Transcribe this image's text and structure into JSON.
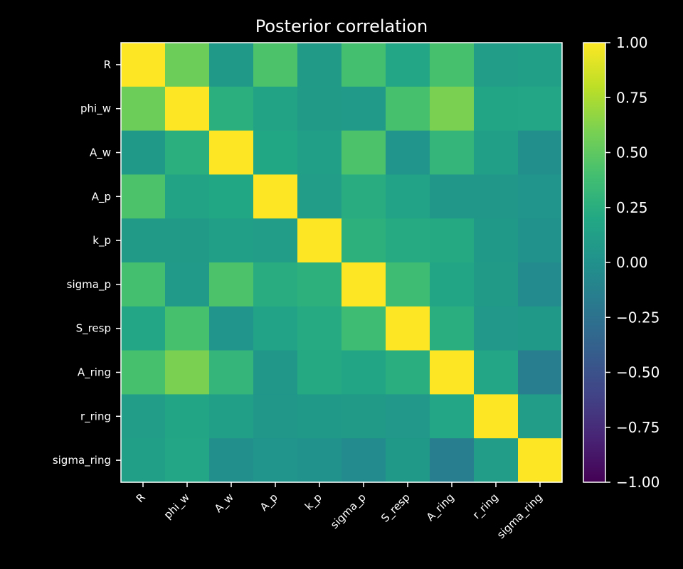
{
  "chart_data": {
    "type": "heatmap",
    "title": "Posterior correlation",
    "categories": [
      "R",
      "phi_w",
      "A_w",
      "A_p",
      "k_p",
      "sigma_p",
      "S_resp",
      "A_ring",
      "r_ring",
      "sigma_ring"
    ],
    "matrix": [
      [
        1.0,
        0.55,
        0.07,
        0.43,
        0.09,
        0.4,
        0.18,
        0.41,
        0.11,
        0.13
      ],
      [
        0.55,
        1.0,
        0.26,
        0.16,
        0.09,
        0.08,
        0.41,
        0.6,
        0.17,
        0.18
      ],
      [
        0.07,
        0.26,
        1.0,
        0.19,
        0.12,
        0.43,
        0.03,
        0.31,
        0.13,
        -0.02
      ],
      [
        0.43,
        0.16,
        0.19,
        1.0,
        0.11,
        0.24,
        0.15,
        0.05,
        0.05,
        0.03
      ],
      [
        0.09,
        0.09,
        0.12,
        0.11,
        1.0,
        0.27,
        0.22,
        0.21,
        0.07,
        0.01
      ],
      [
        0.4,
        0.08,
        0.43,
        0.24,
        0.27,
        1.0,
        0.37,
        0.17,
        0.09,
        -0.05
      ],
      [
        0.18,
        0.41,
        0.03,
        0.15,
        0.22,
        0.37,
        1.0,
        0.25,
        0.06,
        0.07
      ],
      [
        0.41,
        0.6,
        0.31,
        0.05,
        0.21,
        0.17,
        0.25,
        1.0,
        0.18,
        -0.15
      ],
      [
        0.11,
        0.17,
        0.13,
        0.05,
        0.07,
        0.09,
        0.06,
        0.18,
        1.0,
        0.1
      ],
      [
        0.13,
        0.18,
        -0.02,
        0.03,
        0.01,
        -0.05,
        0.07,
        -0.15,
        0.1,
        1.0
      ]
    ],
    "color_range": [
      -1.0,
      1.0
    ],
    "colormap": "viridis",
    "colorbar_ticks": [
      "1.00",
      "0.75",
      "0.50",
      "0.25",
      "0.00",
      "−0.25",
      "−0.50",
      "−0.75",
      "−1.00"
    ],
    "colorbar_tick_values": [
      1.0,
      0.75,
      0.5,
      0.25,
      0.0,
      -0.25,
      -0.5,
      -0.75,
      -1.0
    ],
    "background": "#000000",
    "text_color": "#ffffff",
    "grid": false
  }
}
